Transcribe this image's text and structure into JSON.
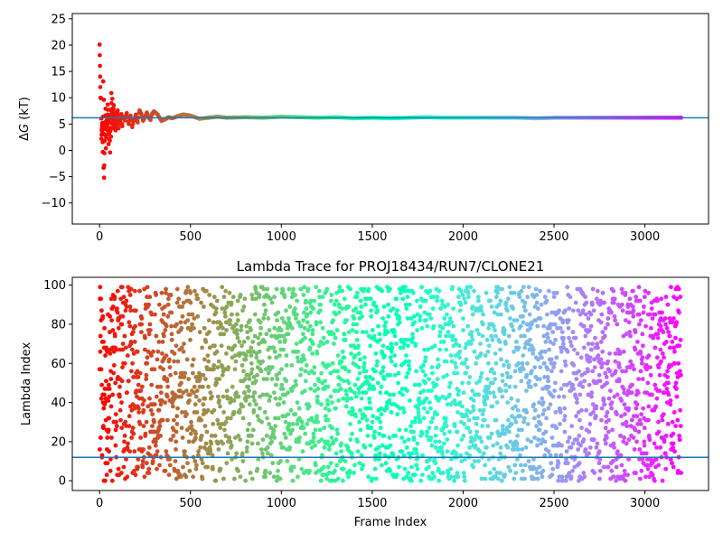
{
  "chart_data": [
    {
      "type": "scatter",
      "title": "",
      "xlabel": "",
      "ylabel_prefix": "Δ",
      "ylabel_var": "G",
      "ylabel_suffix": " (kT)",
      "xlim": [
        -150,
        3350
      ],
      "ylim": [
        -14,
        26
      ],
      "xticks": [
        0,
        500,
        1000,
        1500,
        2000,
        2500,
        3000
      ],
      "yticks": [
        -10,
        -5,
        0,
        5,
        10,
        15,
        20,
        25
      ],
      "hline": 6.2,
      "hline_color": "#1f77b4",
      "colormap": "rainbow_reversed",
      "grid": false,
      "n_frames": 3200,
      "points": [
        [
          0,
          20.1
        ],
        [
          5,
          10.0
        ],
        [
          8,
          9.9
        ],
        [
          10,
          2.2
        ],
        [
          12,
          3.8
        ],
        [
          15,
          5.2
        ],
        [
          18,
          -0.3
        ],
        [
          20,
          13.1
        ],
        [
          22,
          -3.3
        ],
        [
          24,
          9.6
        ],
        [
          25,
          -5.2
        ],
        [
          28,
          1.8
        ],
        [
          30,
          4.1
        ],
        [
          33,
          7.9
        ],
        [
          35,
          0.4
        ],
        [
          38,
          6.6
        ],
        [
          40,
          4.8
        ],
        [
          42,
          3.0
        ],
        [
          45,
          8.7
        ],
        [
          48,
          5.7
        ],
        [
          50,
          1.2
        ],
        [
          52,
          3.1
        ],
        [
          55,
          6.4
        ],
        [
          58,
          -0.4
        ],
        [
          60,
          7.7
        ],
        [
          63,
          2.6
        ],
        [
          65,
          10.9
        ],
        [
          68,
          5.1
        ],
        [
          70,
          9.8
        ],
        [
          73,
          4.2
        ],
        [
          75,
          6.6
        ],
        [
          78,
          8.6
        ],
        [
          80,
          4.8
        ],
        [
          83,
          7.2
        ],
        [
          85,
          5.5
        ],
        [
          88,
          3.8
        ],
        [
          90,
          6.8
        ],
        [
          95,
          5.2
        ],
        [
          100,
          7.6
        ],
        [
          105,
          4.2
        ],
        [
          110,
          6.0
        ],
        [
          115,
          5.3
        ],
        [
          120,
          6.9
        ],
        [
          125,
          4.6
        ],
        [
          130,
          6.4
        ],
        [
          140,
          5.7
        ],
        [
          150,
          7.1
        ],
        [
          160,
          5.0
        ],
        [
          170,
          6.6
        ],
        [
          180,
          4.4
        ],
        [
          190,
          5.9
        ],
        [
          200,
          6.8
        ],
        [
          210,
          5.3
        ],
        [
          220,
          7.6
        ],
        [
          230,
          6.9
        ],
        [
          240,
          5.6
        ],
        [
          250,
          6.4
        ],
        [
          260,
          7.2
        ],
        [
          270,
          6.2
        ],
        [
          280,
          5.8
        ],
        [
          290,
          7.0
        ],
        [
          300,
          7.4
        ],
        [
          320,
          6.8
        ],
        [
          340,
          5.6
        ],
        [
          360,
          5.9
        ],
        [
          380,
          6.3
        ],
        [
          400,
          6.1
        ],
        [
          430,
          6.5
        ],
        [
          460,
          6.8
        ],
        [
          500,
          6.6
        ],
        [
          550,
          6.0
        ],
        [
          600,
          6.2
        ],
        [
          650,
          6.4
        ],
        [
          700,
          6.2
        ],
        [
          800,
          6.3
        ],
        [
          900,
          6.2
        ],
        [
          1000,
          6.4
        ],
        [
          1100,
          6.3
        ],
        [
          1200,
          6.2
        ],
        [
          1300,
          6.3
        ],
        [
          1400,
          6.1
        ],
        [
          1500,
          6.2
        ],
        [
          1600,
          6.1
        ],
        [
          1700,
          6.2
        ],
        [
          1800,
          6.3
        ],
        [
          1900,
          6.2
        ],
        [
          2000,
          6.2
        ],
        [
          2100,
          6.2
        ],
        [
          2200,
          6.2
        ],
        [
          2300,
          6.2
        ],
        [
          2400,
          6.1
        ],
        [
          2500,
          6.2
        ],
        [
          2600,
          6.2
        ],
        [
          2700,
          6.2
        ],
        [
          2800,
          6.2
        ],
        [
          2900,
          6.2
        ],
        [
          3000,
          6.2
        ],
        [
          3100,
          6.2
        ],
        [
          3200,
          6.2
        ]
      ]
    },
    {
      "type": "scatter",
      "title": "Lambda Trace for PROJ18434/RUN7/CLONE21",
      "xlabel": "Frame Index",
      "ylabel": "Lambda Index",
      "xlim": [
        -150,
        3350
      ],
      "ylim": [
        -5,
        104
      ],
      "xticks": [
        0,
        500,
        1000,
        1500,
        2000,
        2500,
        3000
      ],
      "yticks": [
        0,
        20,
        40,
        60,
        80,
        100
      ],
      "hline": 12,
      "hline_color": "#1f77b4",
      "colormap": "rainbow_reversed",
      "grid": false,
      "n_points": 3200,
      "lambda_range": [
        0,
        99
      ]
    }
  ]
}
